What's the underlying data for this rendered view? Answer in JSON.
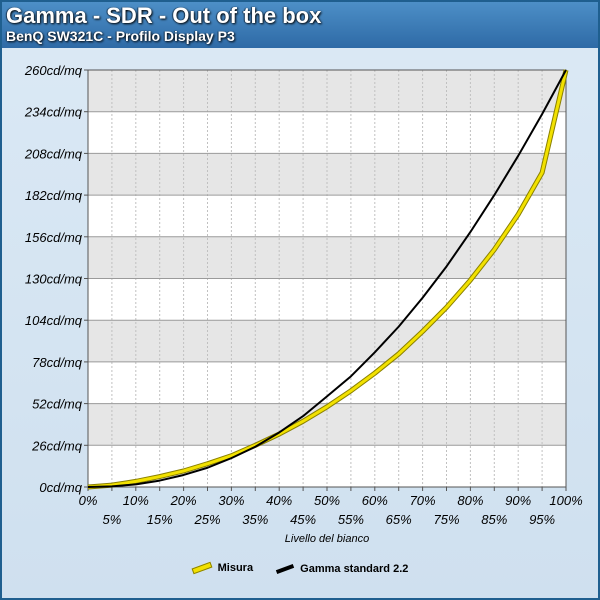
{
  "header": {
    "title": "Gamma - SDR - Out of the box",
    "subtitle": "BenQ SW321C - Profilo Display P3"
  },
  "chart_data": {
    "type": "line",
    "title": "Gamma - SDR - Out of the box",
    "subtitle": "BenQ SW321C - Profilo Display P3",
    "xlabel": "Livello del bianco",
    "ylabel": "",
    "ylim": [
      0,
      260
    ],
    "xlim": [
      0,
      100
    ],
    "grid": true,
    "legend_position": "bottom",
    "x": [
      0,
      5,
      10,
      15,
      20,
      25,
      30,
      35,
      40,
      45,
      50,
      55,
      60,
      65,
      70,
      75,
      80,
      85,
      90,
      95,
      100
    ],
    "x_tick_labels": [
      "0%",
      "5%",
      "10%",
      "15%",
      "20%",
      "25%",
      "30%",
      "35%",
      "40%",
      "45%",
      "50%",
      "55%",
      "60%",
      "65%",
      "70%",
      "75%",
      "80%",
      "85%",
      "90%",
      "95%",
      "100%"
    ],
    "y_tick_labels": [
      "0cd/mq",
      "26cd/mq",
      "52cd/mq",
      "78cd/mq",
      "104cd/mq",
      "130cd/mq",
      "156cd/mq",
      "182cd/mq",
      "208cd/mq",
      "234cd/mq",
      "260cd/mq"
    ],
    "y_ticks": [
      0,
      26,
      52,
      78,
      104,
      130,
      156,
      182,
      208,
      234,
      260
    ],
    "series": [
      {
        "name": "Misura",
        "color": "#f2e100",
        "values": [
          0,
          1.2,
          3.5,
          6.5,
          10,
          14.5,
          19.5,
          26,
          33,
          41,
          50,
          60,
          71,
          83,
          97,
          112,
          129,
          148,
          170,
          196,
          260
        ]
      },
      {
        "name": "Gamma standard 2.2",
        "color": "#000000",
        "values": [
          0,
          0.36,
          1.65,
          4.0,
          7.5,
          12.0,
          18.0,
          25.1,
          34.0,
          44.2,
          56.5,
          69.0,
          84.0,
          100.0,
          118.0,
          137.5,
          159.0,
          182.0,
          206.5,
          232.5,
          260
        ]
      }
    ]
  }
}
